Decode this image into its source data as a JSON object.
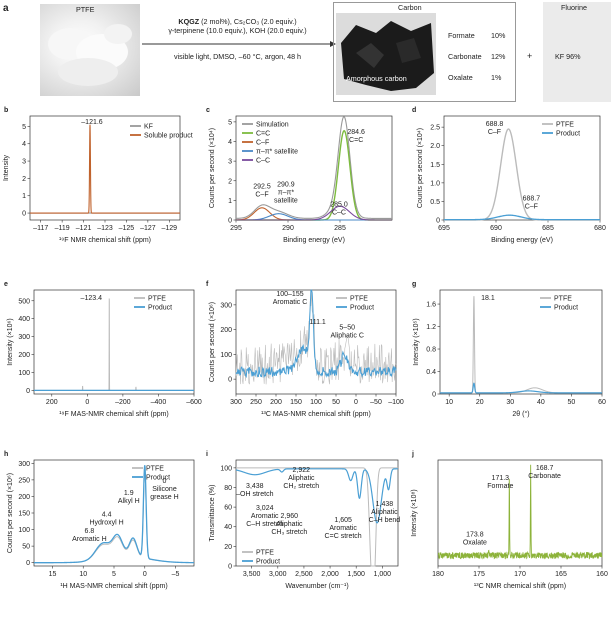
{
  "panels": [
    "a",
    "b",
    "c",
    "d",
    "e",
    "f",
    "g",
    "h",
    "i",
    "j"
  ],
  "panel_a": {
    "start_label": "PTFE",
    "cond1_bold": "KQGZ",
    "cond1_rest": " (2 mol%), Cs₂CO₃ (2.0 equiv.)",
    "cond2": "γ-terpinene (10.0 equiv.), KOH (20.0 equiv.)",
    "cond3": "visible light, DMSO, –60 °C, argon, 48 h",
    "carbon_title": "Carbon",
    "amorphous_label": "Amorphous carbon",
    "products": [
      {
        "name": "Formate",
        "value": "10%"
      },
      {
        "name": "Carbonate",
        "value": "12%"
      },
      {
        "name": "Oxalate",
        "value": "1%"
      }
    ],
    "plus": "+",
    "fluorine_title": "Fluorine",
    "fluorine_value": "KF 96%"
  },
  "chart_data": [
    {
      "panel": "b",
      "type": "line",
      "xlabel": "¹⁹F NMR chemical shift (ppm)",
      "ylabel": "Intensity",
      "xticks": [
        "–117",
        "–119",
        "–121",
        "–123",
        "–125",
        "–127",
        "–129"
      ],
      "yticks": [
        "0",
        "1",
        "2",
        "3",
        "4",
        "5"
      ],
      "xlim": [
        -116,
        -130
      ],
      "ylim": [
        -0.4,
        5.6
      ],
      "series": [
        {
          "name": "KF",
          "color": "#999999"
        },
        {
          "name": "Soluble product",
          "color": "#c0622c"
        }
      ],
      "peaks": [
        {
          "x": -121.6,
          "label": "–121.6"
        }
      ]
    },
    {
      "panel": "c",
      "type": "line",
      "xlabel": "Binding energy (eV)",
      "ylabel": "Counts per second (×10⁴)",
      "xticks": [
        "295",
        "290",
        "285"
      ],
      "yticks": [
        "0",
        "1",
        "2",
        "3",
        "4",
        "5"
      ],
      "xlim": [
        295,
        280
      ],
      "ylim": [
        0,
        5.3
      ],
      "series": [
        {
          "name": "Simulation",
          "color": "#999999"
        },
        {
          "name": "C=C",
          "color": "#7dbb3f"
        },
        {
          "name": "C–F",
          "color": "#c0622c"
        },
        {
          "name": "π–π* satellite",
          "color": "#4a88c7"
        },
        {
          "name": "C–C",
          "color": "#7a4a9c"
        }
      ],
      "peaks": [
        {
          "x": 284.6,
          "label": "284.6 C=C"
        },
        {
          "x": 292.5,
          "label": "292.5 C–F"
        },
        {
          "x": 290.9,
          "label": "290.9 π–π* satellite"
        },
        {
          "x": 285.0,
          "label": "285.0 C–C"
        }
      ]
    },
    {
      "panel": "d",
      "type": "line",
      "xlabel": "Binding energy (eV)",
      "ylabel": "Counts per second (×10⁴)",
      "xticks": [
        "695",
        "690",
        "685",
        "680"
      ],
      "yticks": [
        "0",
        "0.5",
        "1.0",
        "1.5",
        "2.0",
        "2.5"
      ],
      "xlim": [
        695,
        680
      ],
      "ylim": [
        0,
        2.8
      ],
      "series": [
        {
          "name": "PTFE",
          "color": "#bbbbbb"
        },
        {
          "name": "Product",
          "color": "#4a9fd4"
        }
      ],
      "peaks": [
        {
          "x": 688.8,
          "label": "688.8 C–F"
        },
        {
          "x": 688.7,
          "label": "688.7 C–F"
        }
      ]
    },
    {
      "panel": "e",
      "type": "line",
      "xlabel": "¹⁹F MAS-NMR chemical shift (ppm)",
      "ylabel": "Intensity (×10⁶)",
      "xticks": [
        "200",
        "0",
        "–200",
        "–400",
        "–600"
      ],
      "yticks": [
        "0",
        "100",
        "200",
        "300",
        "400",
        "500"
      ],
      "xlim": [
        300,
        -600
      ],
      "ylim": [
        -20,
        560
      ],
      "series": [
        {
          "name": "PTFE",
          "color": "#bbbbbb"
        },
        {
          "name": "Product",
          "color": "#4a9fd4"
        }
      ],
      "peaks": [
        {
          "x": -123.4,
          "label": "–123.4"
        }
      ]
    },
    {
      "panel": "f",
      "type": "line",
      "xlabel": "¹³C MAS-NMR chemical shift (ppm)",
      "ylabel": "Counts per second (×10⁶)",
      "xticks": [
        "300",
        "250",
        "200",
        "150",
        "100",
        "50",
        "0",
        "–50",
        "–100"
      ],
      "yticks": [
        "0",
        "100",
        "200",
        "300"
      ],
      "xlim": [
        300,
        -100
      ],
      "ylim": [
        -60,
        360
      ],
      "series": [
        {
          "name": "PTFE",
          "color": "#bbbbbb"
        },
        {
          "name": "Product",
          "color": "#4a9fd4"
        }
      ],
      "peaks": [
        {
          "x": 111.1,
          "label": "111.1"
        },
        {
          "x": 130,
          "label": "100–155 Aromatic C"
        },
        {
          "x": 30,
          "label": "5–50 Aliphatic C"
        }
      ]
    },
    {
      "panel": "g",
      "type": "line",
      "xlabel": "2θ (°)",
      "ylabel": "Intensity (×10⁵)",
      "xticks": [
        "10",
        "20",
        "30",
        "40",
        "50",
        "60"
      ],
      "yticks": [
        "0",
        "0.4",
        "0.8",
        "1.2",
        "1.6"
      ],
      "xlim": [
        7,
        60
      ],
      "ylim": [
        0,
        1.85
      ],
      "series": [
        {
          "name": "PTFE",
          "color": "#bbbbbb"
        },
        {
          "name": "Product",
          "color": "#4a9fd4"
        }
      ],
      "peaks": [
        {
          "x": 18.1,
          "label": "18.1"
        }
      ]
    },
    {
      "panel": "h",
      "type": "line",
      "xlabel": "¹H MAS-NMR chemical shift (ppm)",
      "ylabel": "Counts per second (×10⁶)",
      "xticks": [
        "15",
        "10",
        "5",
        "0",
        "–5"
      ],
      "yticks": [
        "0",
        "50",
        "100",
        "150",
        "200",
        "250",
        "300"
      ],
      "xlim": [
        18,
        -8
      ],
      "ylim": [
        -10,
        310
      ],
      "series": [
        {
          "name": "PTFE",
          "color": "#bbbbbb"
        },
        {
          "name": "Product",
          "color": "#4a9fd4"
        }
      ],
      "peaks": [
        {
          "x": 6.8,
          "label": "6.8 Aromatic H"
        },
        {
          "x": 4.4,
          "label": "4.4 Hydroxyl H"
        },
        {
          "x": 1.9,
          "label": "1.9 Alkyl H"
        },
        {
          "x": 0,
          "label": "0 Silicone grease H"
        }
      ]
    },
    {
      "panel": "i",
      "type": "line",
      "xlabel": "Wavenumber (cm⁻¹)",
      "ylabel": "Transmittance (%)",
      "xticks": [
        "3,500",
        "3,000",
        "2,500",
        "2,000",
        "1,500",
        "1,000"
      ],
      "yticks": [
        "0",
        "20",
        "40",
        "60",
        "80",
        "100"
      ],
      "xlim": [
        3800,
        700
      ],
      "ylim": [
        0,
        108
      ],
      "series": [
        {
          "name": "PTFE",
          "color": "#bbbbbb"
        },
        {
          "name": "Product",
          "color": "#4a9fd4"
        }
      ],
      "peaks": [
        {
          "x": 3438,
          "label": "3,438 –OH stretch"
        },
        {
          "x": 3024,
          "label": "3,024 Aromatic C–H stretch"
        },
        {
          "x": 2960,
          "label": "2,960 Aliphatic CH₃ stretch"
        },
        {
          "x": 2922,
          "label": "2,922 Aliphatic CH₂ stretch"
        },
        {
          "x": 1605,
          "label": "1,605 Aromatic C=C stretch"
        },
        {
          "x": 1438,
          "label": "1,438 Aliphatic C–H bend"
        }
      ]
    },
    {
      "panel": "j",
      "type": "line",
      "xlabel": "¹³C NMR chemical shift (ppm)",
      "ylabel": "Intensity (×10⁸)",
      "xticks": [
        "180",
        "175",
        "170",
        "165",
        "160"
      ],
      "yticks": [],
      "xlim": [
        180,
        160
      ],
      "ylim": [
        0,
        1
      ],
      "series": [
        {
          "name": "spectrum",
          "color": "#8db33a"
        }
      ],
      "peaks": [
        {
          "x": 171.3,
          "label": "171.3 Formate"
        },
        {
          "x": 168.7,
          "label": "168.7 Carbonate"
        },
        {
          "x": 173.8,
          "label": "173.8 Oxalate"
        }
      ]
    }
  ]
}
